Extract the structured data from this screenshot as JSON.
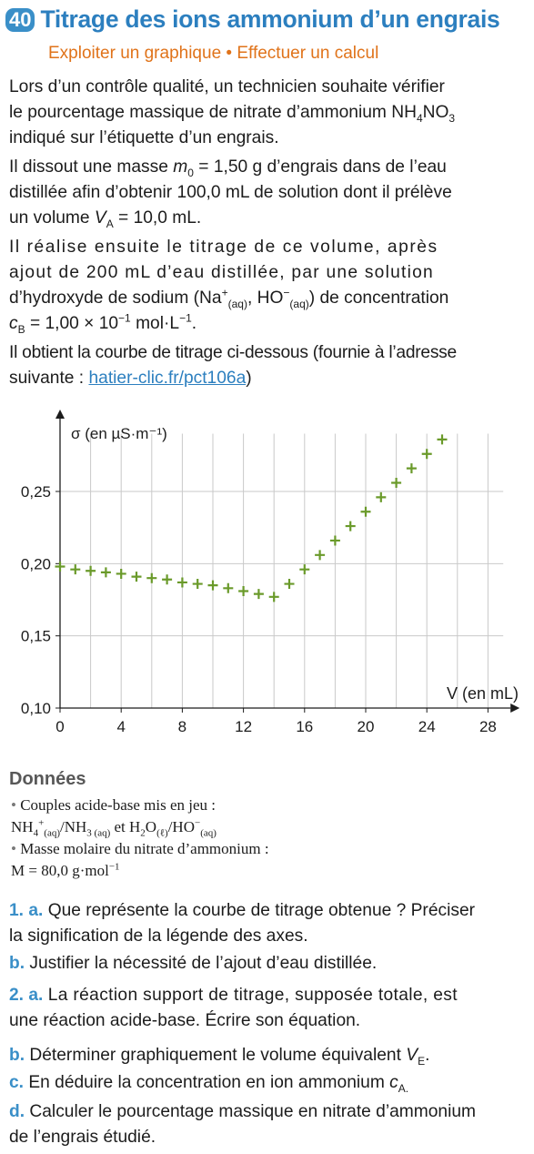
{
  "header": {
    "number": "40",
    "title": "Titrage des ions ammonium d’un engrais",
    "subtitle": "Exploiter un graphique • Effectuer un calcul"
  },
  "intro": {
    "p1a": "Lors d’un contrôle qualité, un technicien souhaite vérifier",
    "p1b": "le pourcentage massique de nitrate d’ammonium NH",
    "p1c": "indiqué sur l’étiquette d’un engrais.",
    "p2a": "Il dissout une masse",
    "p2b": "= 1,50 g d’engrais dans de l’eau",
    "p2c": "distillée afin d’obtenir 100,0 mL de solution dont il prélève",
    "p2d": "un volume",
    "p2e": "= 10,0 mL.",
    "p3a": "Il réalise ensuite le titrage de ce volume, après",
    "p3b": "ajout de 200 mL d’eau distillée, par une solution",
    "p3c": "d’hydroxyde de sodium (Na",
    "p3d": "de concentration",
    "p3e": "= 1,00 × 10",
    "p3f": "mol·L",
    "p4a": "Il obtient la courbe de titrage ci-dessous (fournie à l’adresse",
    "p4b": "suivante :",
    "link": "hatier-clic.fr/pct106a"
  },
  "chart_data": {
    "type": "scatter",
    "ylabel": "σ (en µS·m⁻¹)",
    "xlabel": "V (en mL)",
    "xlim": [
      0,
      29
    ],
    "ylim": [
      0.1,
      0.29
    ],
    "x_ticks": [
      "0",
      "4",
      "8",
      "12",
      "16",
      "20",
      "24",
      "28"
    ],
    "y_ticks": [
      "0,10",
      "0,15",
      "0,20",
      "0,25"
    ],
    "grid": true,
    "marker": "+",
    "color": "#6a9a2a",
    "x": [
      0,
      1,
      2,
      3,
      4,
      5,
      6,
      7,
      8,
      9,
      10,
      11,
      12,
      13,
      14,
      15,
      16,
      17,
      18,
      19,
      20,
      21,
      22,
      23,
      24,
      25
    ],
    "y": [
      0.198,
      0.196,
      0.195,
      0.194,
      0.193,
      0.191,
      0.19,
      0.189,
      0.187,
      0.186,
      0.185,
      0.183,
      0.181,
      0.179,
      0.177,
      0.186,
      0.196,
      0.206,
      0.216,
      0.226,
      0.236,
      0.246,
      0.256,
      0.266,
      0.276,
      0.286
    ]
  },
  "donnees": {
    "title": "Données",
    "b1": "Couples acide-base mis en jeu :",
    "b2": "Masse molaire du nitrate d’ammonium :",
    "m": "M = 80,0 g·mol"
  },
  "questions": {
    "q1a_num": "1. a.",
    "q1a_1": "Que représente la courbe de titrage obtenue ? Préciser",
    "q1a_2": "la signification de la légende des axes.",
    "q1b_num": "b.",
    "q1b": "Justifier la nécessité de l’ajout d’eau distillée.",
    "q2a_num": "2. a.",
    "q2a_1": "La réaction support de titrage, supposée totale, est",
    "q2a_2": "une réaction acide-base. Écrire son équation.",
    "q2b_num": "b.",
    "q2b": "Déterminer graphiquement le volume équivalent",
    "q2c_num": "c.",
    "q2c": "En déduire la concentration en ion ammonium",
    "q2d_num": "d.",
    "q2d_1": "Calculer le pourcentage massique en nitrate d’ammonium",
    "q2d_2": "de l’engrais étudié."
  }
}
